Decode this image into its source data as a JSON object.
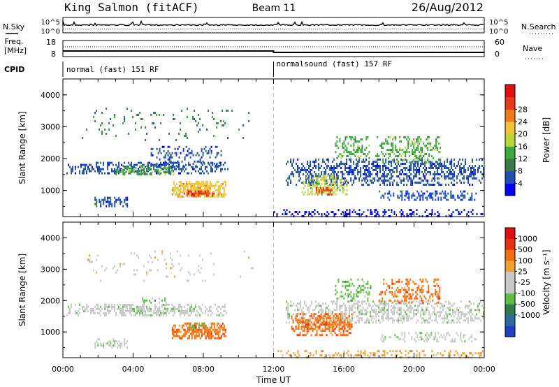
{
  "header": {
    "station": "King Salmon (fitACF)",
    "beam": "Beam 11",
    "date": "26/Aug/2012"
  },
  "summary": {
    "nsky_label": "N.Sky",
    "nsky_ticks": [
      "10^5",
      "10^0"
    ],
    "nsearch_label": "N.Search",
    "nsearch_ticks": [
      "10^5",
      "10^0"
    ],
    "freq_label_1": "Freq.",
    "freq_label_2": "[MHz]",
    "freq_ticks": [
      "18",
      "8"
    ],
    "nave_label": "Nave",
    "nave_ticks": [
      "60",
      "0"
    ],
    "cpid_label": "CPID",
    "cpid_modes": [
      {
        "name": "normal (fast) 151 RF",
        "start_hour": 0
      },
      {
        "name": "normalsound (fast) 157 RF",
        "start_hour": 12
      }
    ]
  },
  "colors": {
    "power_scale": [
      "#0000ff",
      "#1f4fb4",
      "#3a7a4a",
      "#3aa83a",
      "#b8d83a",
      "#f2c23a",
      "#f07a1a",
      "#e63a1a",
      "#e01010"
    ],
    "velocity_scale": [
      "#1f3fc8",
      "#2a6aa0",
      "#2e7a4e",
      "#5cc040",
      "#c8c8c8",
      "#c8c8c8",
      "#f0a030",
      "#f07010",
      "#e83010",
      "#e01010"
    ]
  },
  "chart_data": [
    {
      "type": "heatmap",
      "panel": "power",
      "ylabel": "Slant Range [km]",
      "xlim_hours": [
        0,
        24
      ],
      "ylim_km": [
        180,
        4500
      ],
      "y_ticks": [
        "1000",
        "2000",
        "3000",
        "4000"
      ],
      "colorbar_label": "Power [dB]",
      "colorbar_ticks": [
        "4",
        "8",
        "12",
        "16",
        "20",
        "24",
        "28"
      ],
      "blobs": [
        {
          "t0": 0.2,
          "t1": 9.4,
          "r0": 1550,
          "r1": 1900,
          "level": 1,
          "density": 0.55
        },
        {
          "t0": 3.0,
          "t1": 6.3,
          "r0": 1500,
          "r1": 1800,
          "level": 3,
          "density": 0.5
        },
        {
          "t0": 6.2,
          "t1": 9.3,
          "r0": 800,
          "r1": 1300,
          "level": 5,
          "density": 0.85
        },
        {
          "t0": 6.8,
          "t1": 8.6,
          "r0": 820,
          "r1": 1000,
          "level": 7,
          "density": 0.7
        },
        {
          "t0": 1.8,
          "t1": 3.7,
          "r0": 500,
          "r1": 800,
          "level": 1,
          "density": 0.5
        },
        {
          "t0": 5.0,
          "t1": 9.0,
          "r0": 1800,
          "r1": 2400,
          "level": 1,
          "density": 0.3
        },
        {
          "t0": 12.7,
          "t1": 24.0,
          "r0": 1200,
          "r1": 2000,
          "level": 1,
          "density": 0.55
        },
        {
          "t0": 13.6,
          "t1": 16.2,
          "r0": 850,
          "r1": 1500,
          "level": 4,
          "density": 0.55
        },
        {
          "t0": 14.4,
          "t1": 15.4,
          "r0": 900,
          "r1": 1100,
          "level": 7,
          "density": 0.6
        },
        {
          "t0": 15.5,
          "t1": 17.5,
          "r0": 2000,
          "r1": 2700,
          "level": 3,
          "density": 0.45
        },
        {
          "t0": 17.8,
          "t1": 21.5,
          "r0": 1900,
          "r1": 2700,
          "level": 3,
          "density": 0.4
        },
        {
          "t0": 18.0,
          "t1": 23.5,
          "r0": 700,
          "r1": 1000,
          "level": 1,
          "density": 0.45
        },
        {
          "t0": 12.0,
          "t1": 24.0,
          "r0": 200,
          "r1": 420,
          "level": 0,
          "density": 0.35
        },
        {
          "t0": 1.0,
          "t1": 11.0,
          "r0": 2600,
          "r1": 3600,
          "level": 2,
          "density": 0.06
        }
      ]
    },
    {
      "type": "heatmap",
      "panel": "velocity",
      "ylabel": "Slant Range [km]",
      "xlabel": "Time UT",
      "xlim_hours": [
        0,
        24
      ],
      "x_ticks": [
        "00:00",
        "04:00",
        "08:00",
        "12:00",
        "16:00",
        "20:00",
        "00:00"
      ],
      "ylim_km": [
        180,
        4500
      ],
      "y_ticks": [
        "1000",
        "2000",
        "3000",
        "4000"
      ],
      "colorbar_label": "Velocity [m s⁻¹]",
      "colorbar_ticks": [
        "1000",
        "500",
        "100",
        "25",
        "-25",
        "-100",
        "-500",
        "-1000"
      ],
      "blobs": [
        {
          "t0": 0.2,
          "t1": 9.4,
          "r0": 1550,
          "r1": 1900,
          "level": 4,
          "density": 0.6
        },
        {
          "t0": 6.2,
          "t1": 9.3,
          "r0": 800,
          "r1": 1300,
          "level": 7,
          "density": 0.8
        },
        {
          "t0": 7.2,
          "t1": 8.2,
          "r0": 1150,
          "r1": 1300,
          "level": 3,
          "density": 0.6
        },
        {
          "t0": 4.5,
          "t1": 6.0,
          "r0": 1900,
          "r1": 2100,
          "level": 3,
          "density": 0.5
        },
        {
          "t0": 1.8,
          "t1": 3.7,
          "r0": 500,
          "r1": 800,
          "level": 4,
          "density": 0.5
        },
        {
          "t0": 12.7,
          "t1": 24.0,
          "r0": 1300,
          "r1": 2000,
          "level": 4,
          "density": 0.55
        },
        {
          "t0": 13.0,
          "t1": 16.5,
          "r0": 900,
          "r1": 1600,
          "level": 7,
          "density": 0.7
        },
        {
          "t0": 15.5,
          "t1": 17.5,
          "r0": 2000,
          "r1": 2700,
          "level": 3,
          "density": 0.4
        },
        {
          "t0": 18.0,
          "t1": 21.5,
          "r0": 1900,
          "r1": 2700,
          "level": 7,
          "density": 0.35
        },
        {
          "t0": 18.0,
          "t1": 23.5,
          "r0": 700,
          "r1": 1000,
          "level": 4,
          "density": 0.4
        },
        {
          "t0": 12.0,
          "t1": 24.0,
          "r0": 200,
          "r1": 420,
          "level": 6,
          "density": 0.35
        },
        {
          "t0": 1.0,
          "t1": 11.0,
          "r0": 2600,
          "r1": 3600,
          "level": 5,
          "density": 0.06
        }
      ]
    }
  ]
}
